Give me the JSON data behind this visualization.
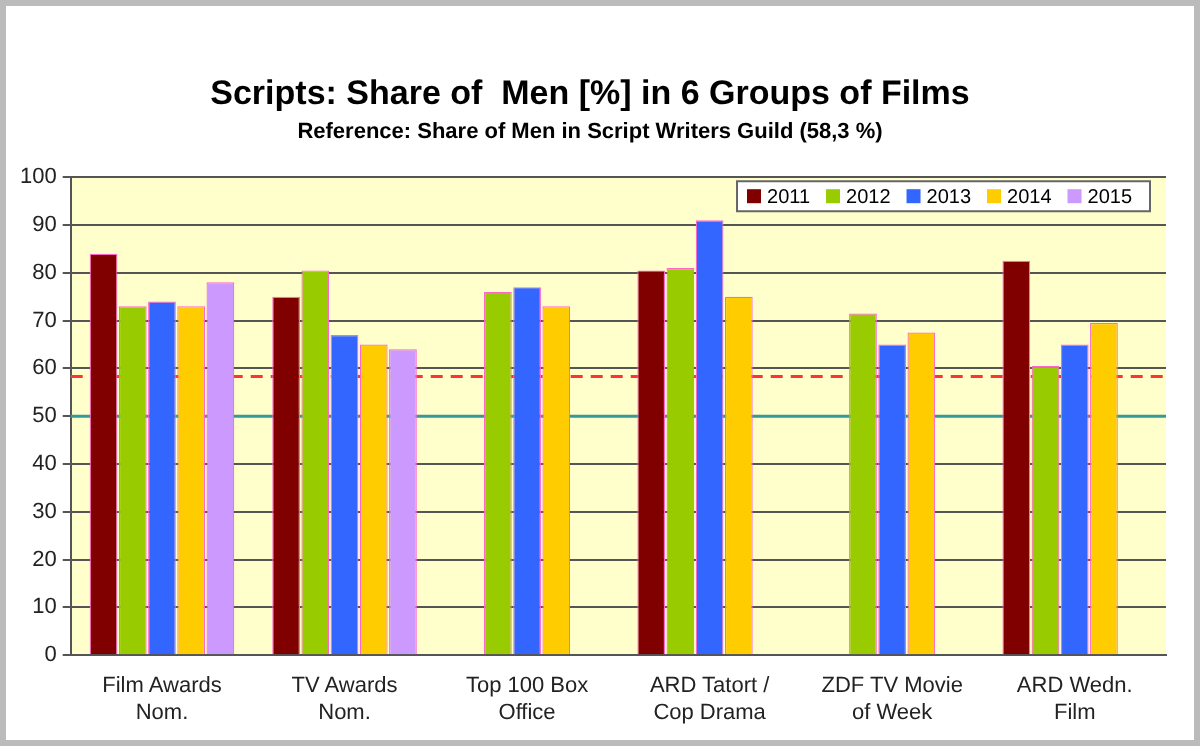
{
  "chart_data": {
    "type": "bar",
    "title": "Scripts: Share of  Men [%] in 6 Groups of Films",
    "subtitle": "Reference: Share of Men in Script Writers Guild (58,3 %)",
    "categories": [
      "Film Awards Nom.",
      "TV Awards Nom.",
      "Top 100 Box Office",
      "ARD Tatort / Cop Drama",
      "ZDF TV Movie of Week",
      "ARD Wedn. Film"
    ],
    "series": [
      {
        "name": "2011",
        "color": "#800000",
        "values": [
          84,
          75,
          null,
          80.5,
          null,
          82.5
        ]
      },
      {
        "name": "2012",
        "color": "#99cc00",
        "values": [
          73,
          80.5,
          76,
          81,
          71.5,
          60.5
        ]
      },
      {
        "name": "2013",
        "color": "#3366ff",
        "values": [
          74,
          67,
          77,
          91,
          65,
          65
        ]
      },
      {
        "name": "2014",
        "color": "#ffcc00",
        "values": [
          73,
          65,
          73,
          75,
          67.5,
          69.5
        ]
      },
      {
        "name": "2015",
        "color": "#cc99ff",
        "values": [
          78,
          64,
          null,
          null,
          null,
          null
        ]
      }
    ],
    "ylim": [
      0,
      100
    ],
    "yticks": [
      0,
      10,
      20,
      30,
      40,
      50,
      60,
      70,
      80,
      90,
      100
    ],
    "grid": "y",
    "legend": "top right",
    "ref_lines": [
      {
        "axis": "y",
        "value": 58.3,
        "color": "#ff3333",
        "line_style": "dashed"
      },
      {
        "axis": "y",
        "value": 50,
        "color": "#339999",
        "line_style": "solid"
      }
    ]
  }
}
